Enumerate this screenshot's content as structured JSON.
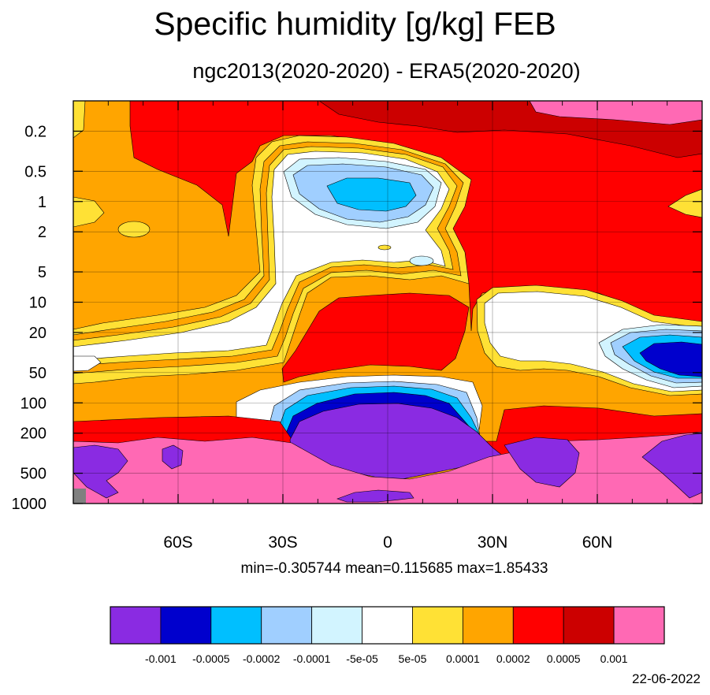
{
  "chart_data": {
    "type": "heatmap",
    "title": "Specific humidity [g/kg] FEB",
    "subtitle": "ngc2013(2020-2020) - ERA5(2020-2020)",
    "x_ticks": [
      {
        "value": -60,
        "label": "60S"
      },
      {
        "value": -30,
        "label": "30S"
      },
      {
        "value": 0,
        "label": "0"
      },
      {
        "value": 30,
        "label": "30N"
      },
      {
        "value": 60,
        "label": "60N"
      }
    ],
    "xlim": [
      -90,
      90
    ],
    "y_ticks": [
      {
        "value": 0.2,
        "label": "0.2"
      },
      {
        "value": 0.5,
        "label": "0.5"
      },
      {
        "value": 1,
        "label": "1"
      },
      {
        "value": 2,
        "label": "2"
      },
      {
        "value": 5,
        "label": "5"
      },
      {
        "value": 10,
        "label": "10"
      },
      {
        "value": 20,
        "label": "20"
      },
      {
        "value": 50,
        "label": "50"
      },
      {
        "value": 100,
        "label": "100"
      },
      {
        "value": 200,
        "label": "200"
      },
      {
        "value": 500,
        "label": "500"
      },
      {
        "value": 1000,
        "label": "1000"
      }
    ],
    "ylim": [
      0.1,
      1000
    ],
    "y_scale": "log",
    "y_reversed": true,
    "grid": true,
    "stats_text": "min=-0.305744   mean=0.115685   max=1.85433",
    "colorbar": {
      "colors": [
        "#8a2be2",
        "#0000cd",
        "#00bfff",
        "#a0cfff",
        "#d2f4ff",
        "#ffffff",
        "#ffe135",
        "#ffa500",
        "#ff0000",
        "#cc0000",
        "#ff69b4"
      ],
      "labels": [
        "-0.001",
        "-0.0005",
        "-0.0002",
        "-0.0001",
        "-5e-05",
        "5e-05",
        "0.0001",
        "0.0002",
        "0.0005",
        "0.001"
      ]
    }
  },
  "footer": {
    "date": "22-06-2022"
  }
}
